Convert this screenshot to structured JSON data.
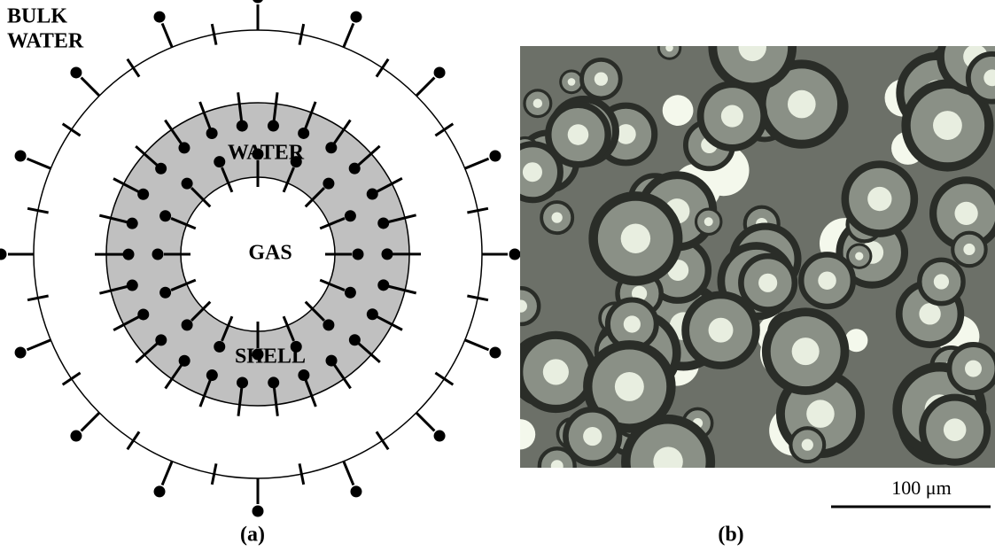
{
  "panel_a": {
    "bulk_label": [
      "BULK",
      "WATER"
    ],
    "shell_top_label": "WATER",
    "core_label": "GAS",
    "shell_bottom_label": "SHELL",
    "caption": "(a)"
  },
  "panel_b": {
    "scale_bar_label": "100 μm",
    "caption": "(b)"
  }
}
